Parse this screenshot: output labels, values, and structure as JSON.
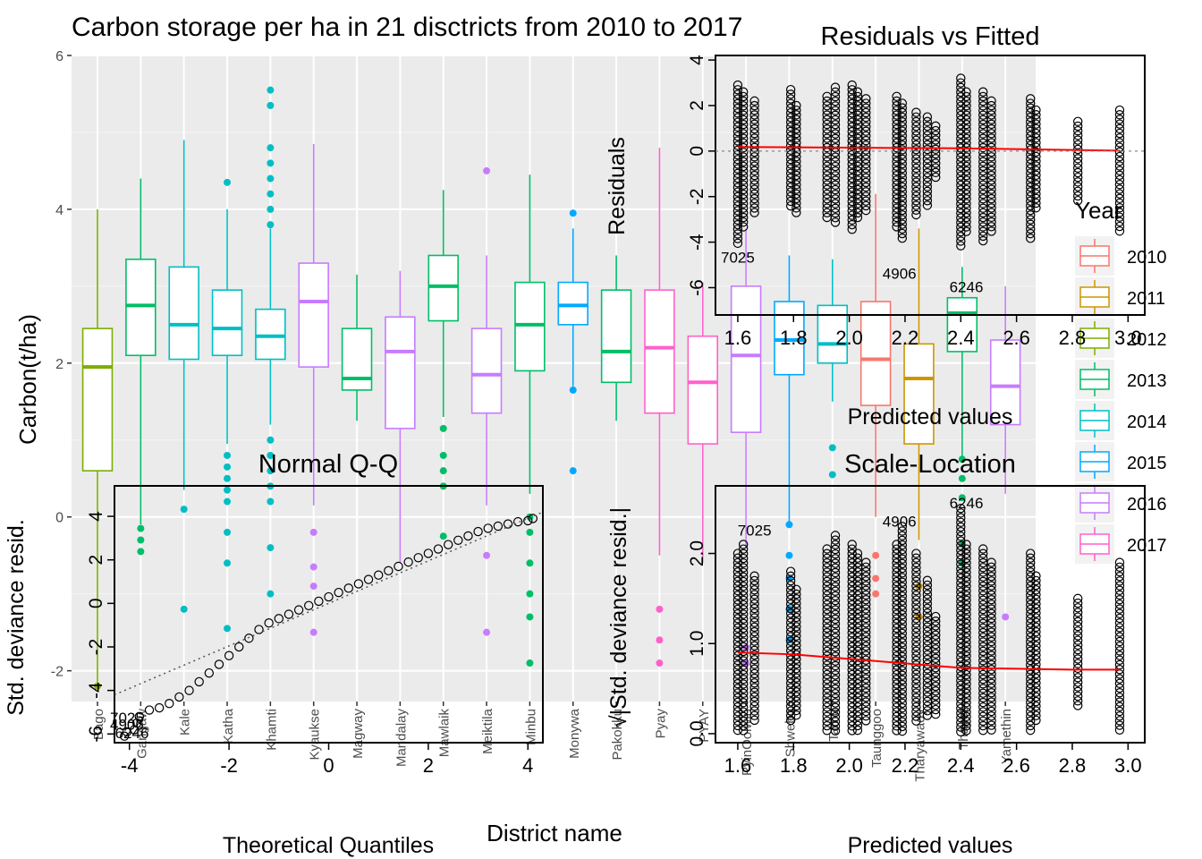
{
  "chart_data": [
    {
      "type": "box",
      "title": "Carbon storage per ha in 21 disctricts from 2010 to 2017",
      "xlabel": "District name",
      "ylabel": "Carbon(t/ha)",
      "ylim": [
        -2.4,
        6
      ],
      "yticks": [
        "-2",
        "0",
        "2",
        "4",
        "6"
      ],
      "grid": true,
      "legend": {
        "title": "Year",
        "position": "right",
        "entries": [
          {
            "label": "2010",
            "color": "#F8766D"
          },
          {
            "label": "2011",
            "color": "#CD9600"
          },
          {
            "label": "2012",
            "color": "#7CAE00"
          },
          {
            "label": "2013",
            "color": "#00BE67"
          },
          {
            "label": "2014",
            "color": "#00BFC4"
          },
          {
            "label": "2015",
            "color": "#00A9FF"
          },
          {
            "label": "2016",
            "color": "#C77CFF"
          },
          {
            "label": "2017",
            "color": "#FF61CC"
          }
        ]
      },
      "categories": [
        "Bago",
        "Gangaw",
        "Kale",
        "Katha",
        "Khamti",
        "Kyaukse",
        "Magway",
        "Mandalay",
        "Mawlaik",
        "Meiktila",
        "Minbu",
        "Monywa",
        "Pakokku",
        "Pyay",
        "PYAY",
        "PyinOolwin",
        "Shwebo",
        "Tamu",
        "Taunggoo",
        "Tharyawady",
        "Thayet",
        "Yamethin"
      ],
      "boxes": [
        {
          "min": -2.2,
          "q1": 0.6,
          "median": 1.95,
          "q3": 2.45,
          "max": 4.0,
          "year": "2012",
          "outliers": [
            -2.2
          ]
        },
        {
          "min": -0.1,
          "q1": 2.1,
          "median": 2.75,
          "q3": 3.35,
          "max": 4.4,
          "year": "2013",
          "outliers": [
            -0.15,
            -0.3,
            -0.45
          ]
        },
        {
          "min": 0.35,
          "q1": 2.05,
          "median": 2.5,
          "q3": 3.25,
          "max": 4.9,
          "year": "2014",
          "outliers": [
            0.1,
            -1.2
          ]
        },
        {
          "min": 0.95,
          "q1": 2.1,
          "median": 2.45,
          "q3": 2.95,
          "max": 4.0,
          "year": "2014",
          "outliers": [
            4.35,
            0.8,
            0.65,
            0.5,
            0.35,
            0.2,
            -0.2,
            -0.6,
            -1.45
          ]
        },
        {
          "min": 1.2,
          "q1": 2.05,
          "median": 2.35,
          "q3": 2.7,
          "max": 3.75,
          "year": "2014",
          "outliers": [
            5.55,
            5.35,
            4.8,
            4.6,
            4.4,
            4.2,
            4.0,
            3.8,
            1.0,
            0.8,
            0.6,
            0.4,
            0.2,
            -0.4,
            -1.0
          ]
        },
        {
          "min": 0.15,
          "q1": 1.95,
          "median": 2.8,
          "q3": 3.3,
          "max": 4.85,
          "year": "2016",
          "outliers": [
            -0.2,
            -0.65,
            -0.9,
            -1.5
          ]
        },
        {
          "min": 1.25,
          "q1": 1.65,
          "median": 1.8,
          "q3": 2.45,
          "max": 3.15,
          "year": "2013",
          "outliers": []
        },
        {
          "min": -0.6,
          "q1": 1.15,
          "median": 2.15,
          "q3": 2.6,
          "max": 3.2,
          "year": "2016",
          "outliers": []
        },
        {
          "min": 1.3,
          "q1": 2.55,
          "median": 3.0,
          "q3": 3.4,
          "max": 4.25,
          "year": "2013",
          "outliers": [
            1.15,
            0.8,
            0.6,
            0.4,
            -0.25
          ]
        },
        {
          "min": 0.15,
          "q1": 1.35,
          "median": 1.85,
          "q3": 2.45,
          "max": 3.4,
          "year": "2016",
          "outliers": [
            4.5,
            -0.5,
            -1.5
          ]
        },
        {
          "min": 0.3,
          "q1": 1.9,
          "median": 2.5,
          "q3": 3.05,
          "max": 4.45,
          "year": "2013",
          "outliers": [
            0.0,
            -0.2,
            -0.6,
            -1.0,
            -1.3,
            -1.9
          ]
        },
        {
          "min": 1.7,
          "q1": 2.5,
          "median": 2.75,
          "q3": 3.05,
          "max": 3.75,
          "year": "2015",
          "outliers": [
            3.95,
            1.65,
            0.6
          ]
        },
        {
          "min": 1.25,
          "q1": 1.75,
          "median": 2.15,
          "q3": 2.95,
          "max": 3.4,
          "year": "2013",
          "outliers": []
        },
        {
          "min": -0.5,
          "q1": 1.35,
          "median": 2.2,
          "q3": 2.95,
          "max": 4.8,
          "year": "2017",
          "outliers": [
            -1.2,
            -1.6,
            -1.9
          ]
        },
        {
          "min": -0.6,
          "q1": 0.95,
          "median": 1.75,
          "q3": 2.35,
          "max": 3.05,
          "year": "2017",
          "outliers": []
        },
        {
          "min": -0.4,
          "q1": 1.1,
          "median": 2.1,
          "q3": 3.0,
          "max": 3.75,
          "year": "2016",
          "outliers": [
            -1.7,
            -1.9
          ]
        },
        {
          "min": -0.1,
          "q1": 1.85,
          "median": 2.3,
          "q3": 2.8,
          "max": 3.4,
          "year": "2015",
          "outliers": [
            -0.1,
            -0.5,
            -0.8,
            -1.2,
            -1.6
          ]
        },
        {
          "min": 1.5,
          "q1": 2.0,
          "median": 2.25,
          "q3": 2.75,
          "max": 3.35,
          "year": "2014",
          "outliers": [
            0.9,
            0.55
          ]
        },
        {
          "min": 0.0,
          "q1": 1.45,
          "median": 2.05,
          "q3": 2.8,
          "max": 4.2,
          "year": "2010",
          "outliers": [
            -0.5,
            -0.8,
            -1.0
          ]
        },
        {
          "min": -0.3,
          "q1": 0.95,
          "median": 1.8,
          "q3": 2.25,
          "max": 3.75,
          "year": "2011",
          "outliers": [
            -0.9,
            -1.3
          ]
        },
        {
          "min": 0.7,
          "q1": 2.15,
          "median": 2.65,
          "q3": 2.85,
          "max": 3.25,
          "year": "2013",
          "outliers": [
            0.75,
            0.5,
            0.25,
            -0.35,
            -0.6
          ]
        },
        {
          "min": 0.3,
          "q1": 1.2,
          "median": 1.7,
          "q3": 2.3,
          "max": 3.0,
          "year": "2016",
          "outliers": [
            -1.3
          ]
        }
      ]
    },
    {
      "type": "scatter",
      "title": "Residuals vs Fitted",
      "xlabel": "Predicted values",
      "ylabel": "Residuals",
      "xlim": [
        1.52,
        3.06
      ],
      "ylim": [
        -7.2,
        4.2
      ],
      "xticks": [
        "1.6",
        "1.8",
        "2.0",
        "2.2",
        "2.4",
        "2.6",
        "2.8",
        "3.0"
      ],
      "yticks": [
        "-6",
        "-4",
        "-2",
        "0",
        "2",
        "4"
      ],
      "columns": [
        {
          "x": 1.6,
          "lo": -4.2,
          "hi": 2.9
        },
        {
          "x": 1.62,
          "lo": -3.5,
          "hi": 2.6
        },
        {
          "x": 1.66,
          "lo": -2.8,
          "hi": 2.2
        },
        {
          "x": 1.79,
          "lo": -2.6,
          "hi": 2.7
        },
        {
          "x": 1.81,
          "lo": -2.9,
          "hi": 2.0
        },
        {
          "x": 1.92,
          "lo": -3.1,
          "hi": 2.4
        },
        {
          "x": 1.95,
          "lo": -3.3,
          "hi": 2.8
        },
        {
          "x": 2.01,
          "lo": -3.6,
          "hi": 2.9
        },
        {
          "x": 2.03,
          "lo": -3.0,
          "hi": 2.6
        },
        {
          "x": 2.06,
          "lo": -2.8,
          "hi": 2.3
        },
        {
          "x": 2.17,
          "lo": -3.5,
          "hi": 2.4
        },
        {
          "x": 2.19,
          "lo": -3.9,
          "hi": 2.1
        },
        {
          "x": 2.24,
          "lo": -3.0,
          "hi": 1.7
        },
        {
          "x": 2.28,
          "lo": -2.4,
          "hi": 1.5
        },
        {
          "x": 2.31,
          "lo": -1.2,
          "hi": 1.1
        },
        {
          "x": 2.4,
          "lo": -4.3,
          "hi": 3.2
        },
        {
          "x": 2.42,
          "lo": -3.6,
          "hi": 2.6
        },
        {
          "x": 2.48,
          "lo": -4.0,
          "hi": 2.6
        },
        {
          "x": 2.51,
          "lo": -3.6,
          "hi": 2.2
        },
        {
          "x": 2.65,
          "lo": -3.9,
          "hi": 2.3
        },
        {
          "x": 2.67,
          "lo": -2.6,
          "hi": 1.8
        },
        {
          "x": 2.82,
          "lo": -2.3,
          "hi": 1.3
        },
        {
          "x": 2.97,
          "lo": -3.6,
          "hi": 1.8
        }
      ],
      "smooth": [
        [
          1.6,
          0.18
        ],
        [
          2.0,
          0.15
        ],
        [
          2.4,
          0.12
        ],
        [
          2.8,
          0.05
        ],
        [
          2.97,
          0.02
        ]
      ],
      "labels": [
        {
          "text": "7025",
          "x": 1.6,
          "y": -4.9
        },
        {
          "text": "4906",
          "x": 2.18,
          "y": -5.6
        },
        {
          "text": "6246",
          "x": 2.42,
          "y": -6.2
        }
      ]
    },
    {
      "type": "scatter",
      "title": "Normal Q-Q",
      "xlabel": "Theoretical Quantiles",
      "ylabel": "Std. deviance resid.",
      "xlim": [
        -4.3,
        4.3
      ],
      "ylim": [
        -6.4,
        5.4
      ],
      "xticks": [
        "-4",
        "-2",
        "0",
        "2",
        "4"
      ],
      "yticks": [
        "-6",
        "-4",
        "-2",
        "0",
        "2",
        "4"
      ],
      "points": [
        [
          -4.1,
          -6.1
        ],
        [
          -4.05,
          -5.9
        ],
        [
          -3.9,
          -5.8
        ],
        [
          -3.85,
          -5.5
        ],
        [
          -3.8,
          -5.2
        ],
        [
          -3.6,
          -4.9
        ],
        [
          -3.4,
          -4.8
        ],
        [
          -3.2,
          -4.6
        ],
        [
          -3.0,
          -4.3
        ],
        [
          -2.8,
          -4.0
        ],
        [
          -2.6,
          -3.6
        ],
        [
          -2.4,
          -3.2
        ],
        [
          -2.2,
          -2.8
        ],
        [
          -2.0,
          -2.4
        ],
        [
          -1.8,
          -2.0
        ],
        [
          -1.6,
          -1.6
        ],
        [
          -1.4,
          -1.2
        ],
        [
          -1.2,
          -0.9
        ],
        [
          -1.0,
          -0.7
        ],
        [
          -0.8,
          -0.5
        ],
        [
          -0.6,
          -0.3
        ],
        [
          -0.4,
          -0.1
        ],
        [
          -0.2,
          0.1
        ],
        [
          0.0,
          0.3
        ],
        [
          0.2,
          0.5
        ],
        [
          0.4,
          0.7
        ],
        [
          0.6,
          0.9
        ],
        [
          0.8,
          1.1
        ],
        [
          1.0,
          1.3
        ],
        [
          1.2,
          1.5
        ],
        [
          1.4,
          1.7
        ],
        [
          1.6,
          1.9
        ],
        [
          1.8,
          2.1
        ],
        [
          2.0,
          2.3
        ],
        [
          2.2,
          2.5
        ],
        [
          2.4,
          2.7
        ],
        [
          2.6,
          2.9
        ],
        [
          2.8,
          3.1
        ],
        [
          3.0,
          3.3
        ],
        [
          3.2,
          3.45
        ],
        [
          3.4,
          3.55
        ],
        [
          3.6,
          3.65
        ],
        [
          3.8,
          3.75
        ],
        [
          4.0,
          3.8
        ],
        [
          4.1,
          3.9
        ]
      ],
      "refline": [
        [
          -4.3,
          -4.2
        ],
        [
          4.3,
          4.2
        ]
      ],
      "labels": [
        {
          "text": "7025",
          "x": -4.05,
          "y": -5.5
        },
        {
          "text": "4906",
          "x": -4.05,
          "y": -5.8
        },
        {
          "text": "6246",
          "x": -3.95,
          "y": -6.2
        }
      ]
    },
    {
      "type": "scatter",
      "title": "Scale-Location",
      "xlabel": "Predicted values",
      "ylabel": "√|Std. deviance resid.|",
      "xlim": [
        1.52,
        3.06
      ],
      "ylim": [
        -0.1,
        2.75
      ],
      "xticks": [
        "1.6",
        "1.8",
        "2.0",
        "2.2",
        "2.4",
        "2.6",
        "2.8",
        "3.0"
      ],
      "yticks": [
        "0.0",
        "1.0",
        "2.0"
      ],
      "columns": [
        {
          "x": 1.6,
          "lo": 0.0,
          "hi": 2.0
        },
        {
          "x": 1.62,
          "lo": 0.0,
          "hi": 2.1
        },
        {
          "x": 1.66,
          "lo": 0.1,
          "hi": 1.75
        },
        {
          "x": 1.79,
          "lo": 0.1,
          "hi": 1.8
        },
        {
          "x": 1.81,
          "lo": 0.2,
          "hi": 1.6
        },
        {
          "x": 1.92,
          "lo": 0.0,
          "hi": 2.05
        },
        {
          "x": 1.95,
          "lo": 0.0,
          "hi": 2.2
        },
        {
          "x": 2.01,
          "lo": 0.0,
          "hi": 2.1
        },
        {
          "x": 2.03,
          "lo": 0.0,
          "hi": 2.0
        },
        {
          "x": 2.06,
          "lo": 0.1,
          "hi": 1.9
        },
        {
          "x": 2.17,
          "lo": 0.0,
          "hi": 2.1
        },
        {
          "x": 2.19,
          "lo": 0.0,
          "hi": 2.3
        },
        {
          "x": 2.24,
          "lo": 0.1,
          "hi": 2.0
        },
        {
          "x": 2.28,
          "lo": 0.2,
          "hi": 1.7
        },
        {
          "x": 2.31,
          "lo": 0.2,
          "hi": 1.3
        },
        {
          "x": 2.4,
          "lo": 0.0,
          "hi": 2.5
        },
        {
          "x": 2.42,
          "lo": 0.0,
          "hi": 2.1
        },
        {
          "x": 2.48,
          "lo": 0.0,
          "hi": 2.05
        },
        {
          "x": 2.51,
          "lo": 0.0,
          "hi": 1.9
        },
        {
          "x": 2.65,
          "lo": 0.0,
          "hi": 2.0
        },
        {
          "x": 2.67,
          "lo": 0.1,
          "hi": 1.75
        },
        {
          "x": 2.82,
          "lo": 0.3,
          "hi": 1.5
        },
        {
          "x": 2.97,
          "lo": 0.0,
          "hi": 1.9
        }
      ],
      "smooth": [
        [
          1.6,
          0.9
        ],
        [
          1.8,
          0.88
        ],
        [
          2.0,
          0.83
        ],
        [
          2.2,
          0.78
        ],
        [
          2.4,
          0.73
        ],
        [
          2.6,
          0.72
        ],
        [
          2.8,
          0.71
        ],
        [
          2.97,
          0.71
        ]
      ],
      "labels": [
        {
          "text": "7025",
          "x": 1.66,
          "y": 2.2
        },
        {
          "text": "4906",
          "x": 2.18,
          "y": 2.3
        },
        {
          "text": "6246",
          "x": 2.42,
          "y": 2.5
        }
      ]
    }
  ]
}
